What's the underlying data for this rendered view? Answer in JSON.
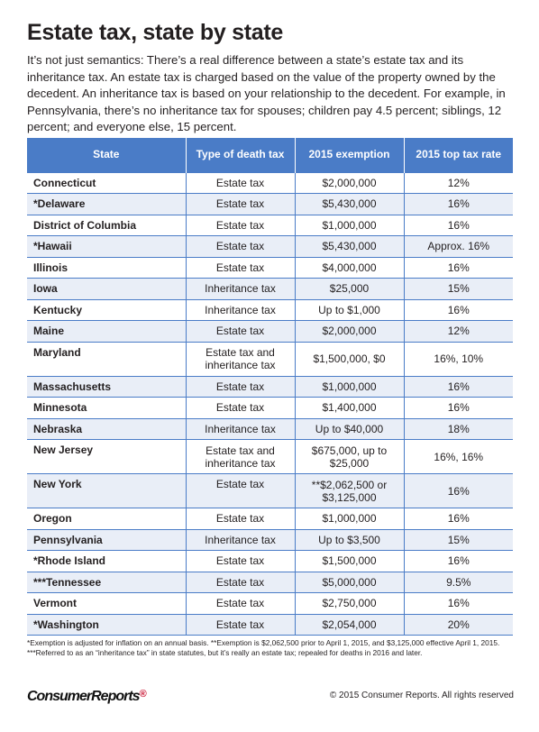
{
  "title": "Estate tax, state by state",
  "intro": "It’s not just semantics: There’s a real difference between a state’s estate tax and its inheritance tax. An estate tax is charged based on the value of the property owned by the decedent. An inheritance tax is based on your relationship to the decedent. For example, in Pennsylvania, there’s no inheritance tax for spouses; children pay 4.5 percent; siblings, 12 percent; and everyone else, 15 percent.",
  "table": {
    "headers": [
      "State",
      "Type of death tax",
      "2015 exemption",
      "2015 top tax rate"
    ],
    "rows": [
      [
        "Connecticut",
        "Estate tax",
        "$2,000,000",
        "12%"
      ],
      [
        "*Delaware",
        "Estate tax",
        "$5,430,000",
        "16%"
      ],
      [
        "District of Columbia",
        "Estate tax",
        "$1,000,000",
        "16%"
      ],
      [
        "*Hawaii",
        "Estate tax",
        "$5,430,000",
        "Approx. 16%"
      ],
      [
        "Illinois",
        "Estate tax",
        "$4,000,000",
        "16%"
      ],
      [
        "Iowa",
        "Inheritance tax",
        "$25,000",
        "15%"
      ],
      [
        "Kentucky",
        "Inheritance tax",
        "Up to $1,000",
        "16%"
      ],
      [
        "Maine",
        "Estate tax",
        "$2,000,000",
        "12%"
      ],
      [
        "Maryland",
        "Estate tax and inheritance tax",
        "$1,500,000, $0",
        "16%, 10%"
      ],
      [
        "Massachusetts",
        "Estate tax",
        "$1,000,000",
        "16%"
      ],
      [
        "Minnesota",
        "Estate tax",
        "$1,400,000",
        "16%"
      ],
      [
        "Nebraska",
        "Inheritance tax",
        "Up to $40,000",
        "18%"
      ],
      [
        "New Jersey",
        "Estate tax and inheritance tax",
        "$675,000, up to $25,000",
        "16%, 16%"
      ],
      [
        "New York",
        "Estate tax",
        "**$2,062,500 or $3,125,000",
        "16%"
      ],
      [
        "Oregon",
        "Estate tax",
        "$1,000,000",
        "16%"
      ],
      [
        "Pennsylvania",
        "Inheritance tax",
        "Up to $3,500",
        "15%"
      ],
      [
        "*Rhode Island",
        "Estate tax",
        "$1,500,000",
        "16%"
      ],
      [
        "***Tennessee",
        "Estate tax",
        "$5,000,000",
        "9.5%"
      ],
      [
        "Vermont",
        "Estate tax",
        "$2,750,000",
        "16%"
      ],
      [
        "*Washington",
        "Estate tax",
        "$2,054,000",
        "20%"
      ]
    ]
  },
  "footnote": "*Exemption is adjusted for inflation on an annual basis. **Exemption is $2,062,500 prior to April 1, 2015, and $3,125,000 effective April 1, 2015. ***Referred to as an “inheritance tax” in state statutes, but it’s really an estate tax; repealed for deaths in 2016 and later.",
  "logo": "ConsumerReports",
  "logo_mark": "®",
  "copyright": "© 2015 Consumer Reports. All rights reserved"
}
